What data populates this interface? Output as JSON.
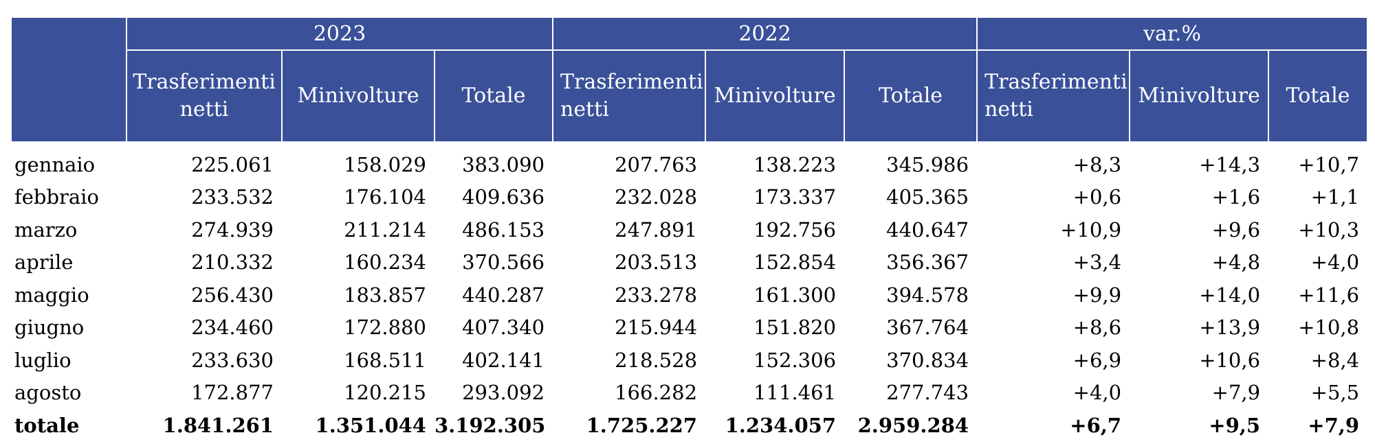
{
  "table": {
    "year_headers": [
      "2023",
      "2022",
      "var.%"
    ],
    "sub_headers": [
      [
        "Trasferimenti",
        "netti"
      ],
      [
        "Minivolture"
      ],
      [
        "Totale"
      ],
      [
        "Trasferimenti",
        "netti"
      ],
      [
        "Minivolture"
      ],
      [
        "Totale"
      ],
      [
        "Trasferimenti",
        "netti"
      ],
      [
        "Minivolture"
      ],
      [
        "Totale"
      ]
    ],
    "rows": [
      {
        "month": "gennaio",
        "values": [
          "225.061",
          "158.029",
          "383.090",
          "207.763",
          "138.223",
          "345.986",
          "+8,3",
          "+14,3",
          "+10,7"
        ]
      },
      {
        "month": "febbraio",
        "values": [
          "233.532",
          "176.104",
          "409.636",
          "232.028",
          "173.337",
          "405.365",
          "+0,6",
          "+1,6",
          "+1,1"
        ]
      },
      {
        "month": "marzo",
        "values": [
          "274.939",
          "211.214",
          "486.153",
          "247.891",
          "192.756",
          "440.647",
          "+10,9",
          "+9,6",
          "+10,3"
        ]
      },
      {
        "month": "aprile",
        "values": [
          "210.332",
          "160.234",
          "370.566",
          "203.513",
          "152.854",
          "356.367",
          "+3,4",
          "+4,8",
          "+4,0"
        ]
      },
      {
        "month": "maggio",
        "values": [
          "256.430",
          "183.857",
          "440.287",
          "233.278",
          "161.300",
          "394.578",
          "+9,9",
          "+14,0",
          "+11,6"
        ]
      },
      {
        "month": "giugno",
        "values": [
          "234.460",
          "172.880",
          "407.340",
          "215.944",
          "151.820",
          "367.764",
          "+8,6",
          "+13,9",
          "+10,8"
        ]
      },
      {
        "month": "luglio",
        "values": [
          "233.630",
          "168.511",
          "402.141",
          "218.528",
          "152.306",
          "370.834",
          "+6,9",
          "+10,6",
          "+8,4"
        ]
      },
      {
        "month": "agosto",
        "values": [
          "172.877",
          "120.215",
          "293.092",
          "166.282",
          "111.461",
          "277.743",
          "+4,0",
          "+7,9",
          "+5,5"
        ]
      }
    ],
    "total": {
      "month": "totale",
      "values": [
        "1.841.261",
        "1.351.044",
        "3.192.305",
        "1.725.227",
        "1.234.057",
        "2.959.284",
        "+6,7",
        "+9,5",
        "+7,9"
      ]
    }
  },
  "colors": {
    "header_bg": "#3a5199",
    "header_text": "#ffffff"
  }
}
